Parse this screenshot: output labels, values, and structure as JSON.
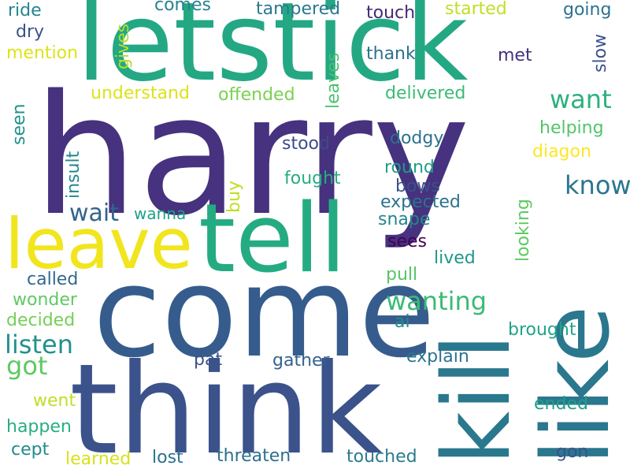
{
  "words": [
    {
      "text": "harry",
      "color": "#46327e"
    },
    {
      "text": "letstick",
      "color": "#24a884"
    },
    {
      "text": "come",
      "color": "#365c8d"
    },
    {
      "text": "think",
      "color": "#3b528b"
    },
    {
      "text": "tell",
      "color": "#25ab82"
    },
    {
      "text": "kill",
      "color": "#2a788e"
    },
    {
      "text": "like",
      "color": "#2a778e"
    },
    {
      "text": "leave",
      "color": "#f1e51d"
    },
    {
      "text": "want",
      "color": "#2cb17e"
    },
    {
      "text": "know",
      "color": "#2a768e"
    },
    {
      "text": "wait",
      "color": "#33638d"
    },
    {
      "text": "wanting",
      "color": "#3bbb75"
    },
    {
      "text": "listen",
      "color": "#21918c"
    },
    {
      "text": "got",
      "color": "#5ec962"
    },
    {
      "text": "ride",
      "color": "#25858e"
    },
    {
      "text": "dry",
      "color": "#3b528b"
    },
    {
      "text": "mention",
      "color": "#dde318"
    },
    {
      "text": "gives",
      "color": "#b5de2b"
    },
    {
      "text": "comes",
      "color": "#26828e"
    },
    {
      "text": "tampered",
      "color": "#2a788e"
    },
    {
      "text": "touch",
      "color": "#482878"
    },
    {
      "text": "started",
      "color": "#c0df25"
    },
    {
      "text": "going",
      "color": "#2c728e"
    },
    {
      "text": "thank",
      "color": "#2c728e"
    },
    {
      "text": "met",
      "color": "#46327e"
    },
    {
      "text": "slow",
      "color": "#3b528b"
    },
    {
      "text": "understand",
      "color": "#dde318"
    },
    {
      "text": "offended",
      "color": "#7ad151"
    },
    {
      "text": "leaves",
      "color": "#4ac16d"
    },
    {
      "text": "delivered",
      "color": "#3bbb75"
    },
    {
      "text": "seen",
      "color": "#21918c"
    },
    {
      "text": "helping",
      "color": "#52c569"
    },
    {
      "text": "stood",
      "color": "#3e4a89"
    },
    {
      "text": "dodgy",
      "color": "#2c728e"
    },
    {
      "text": "diagon",
      "color": "#fde725"
    },
    {
      "text": "insult",
      "color": "#24868e"
    },
    {
      "text": "fought",
      "color": "#27ad81"
    },
    {
      "text": "round",
      "color": "#1f9e89"
    },
    {
      "text": "bows",
      "color": "#3b528b"
    },
    {
      "text": "expected",
      "color": "#2c728e"
    },
    {
      "text": "buy",
      "color": "#c0df25"
    },
    {
      "text": "wanna",
      "color": "#1fa187"
    },
    {
      "text": "snape",
      "color": "#25858e"
    },
    {
      "text": "looking",
      "color": "#5ec962"
    },
    {
      "text": "sees",
      "color": "#440154"
    },
    {
      "text": "lived",
      "color": "#1f968b"
    },
    {
      "text": "called",
      "color": "#31688e"
    },
    {
      "text": "pull",
      "color": "#54c568"
    },
    {
      "text": "wonder",
      "color": "#5ec962"
    },
    {
      "text": "decided",
      "color": "#73d056"
    },
    {
      "text": "ai",
      "color": "#238a8d"
    },
    {
      "text": "brought",
      "color": "#20a486"
    },
    {
      "text": "explain",
      "color": "#2c728e"
    },
    {
      "text": "pat",
      "color": "#3b528b"
    },
    {
      "text": "gather",
      "color": "#33638d"
    },
    {
      "text": "went",
      "color": "#c0df25"
    },
    {
      "text": "ended",
      "color": "#1f9e89"
    },
    {
      "text": "happen",
      "color": "#29af7f"
    },
    {
      "text": "cept",
      "color": "#238a8d"
    },
    {
      "text": "learned",
      "color": "#d8e219"
    },
    {
      "text": "lost",
      "color": "#2c728e"
    },
    {
      "text": "threaten",
      "color": "#2d708e"
    },
    {
      "text": "touched",
      "color": "#287c8e"
    },
    {
      "text": "gon",
      "color": "#3b528b"
    }
  ]
}
